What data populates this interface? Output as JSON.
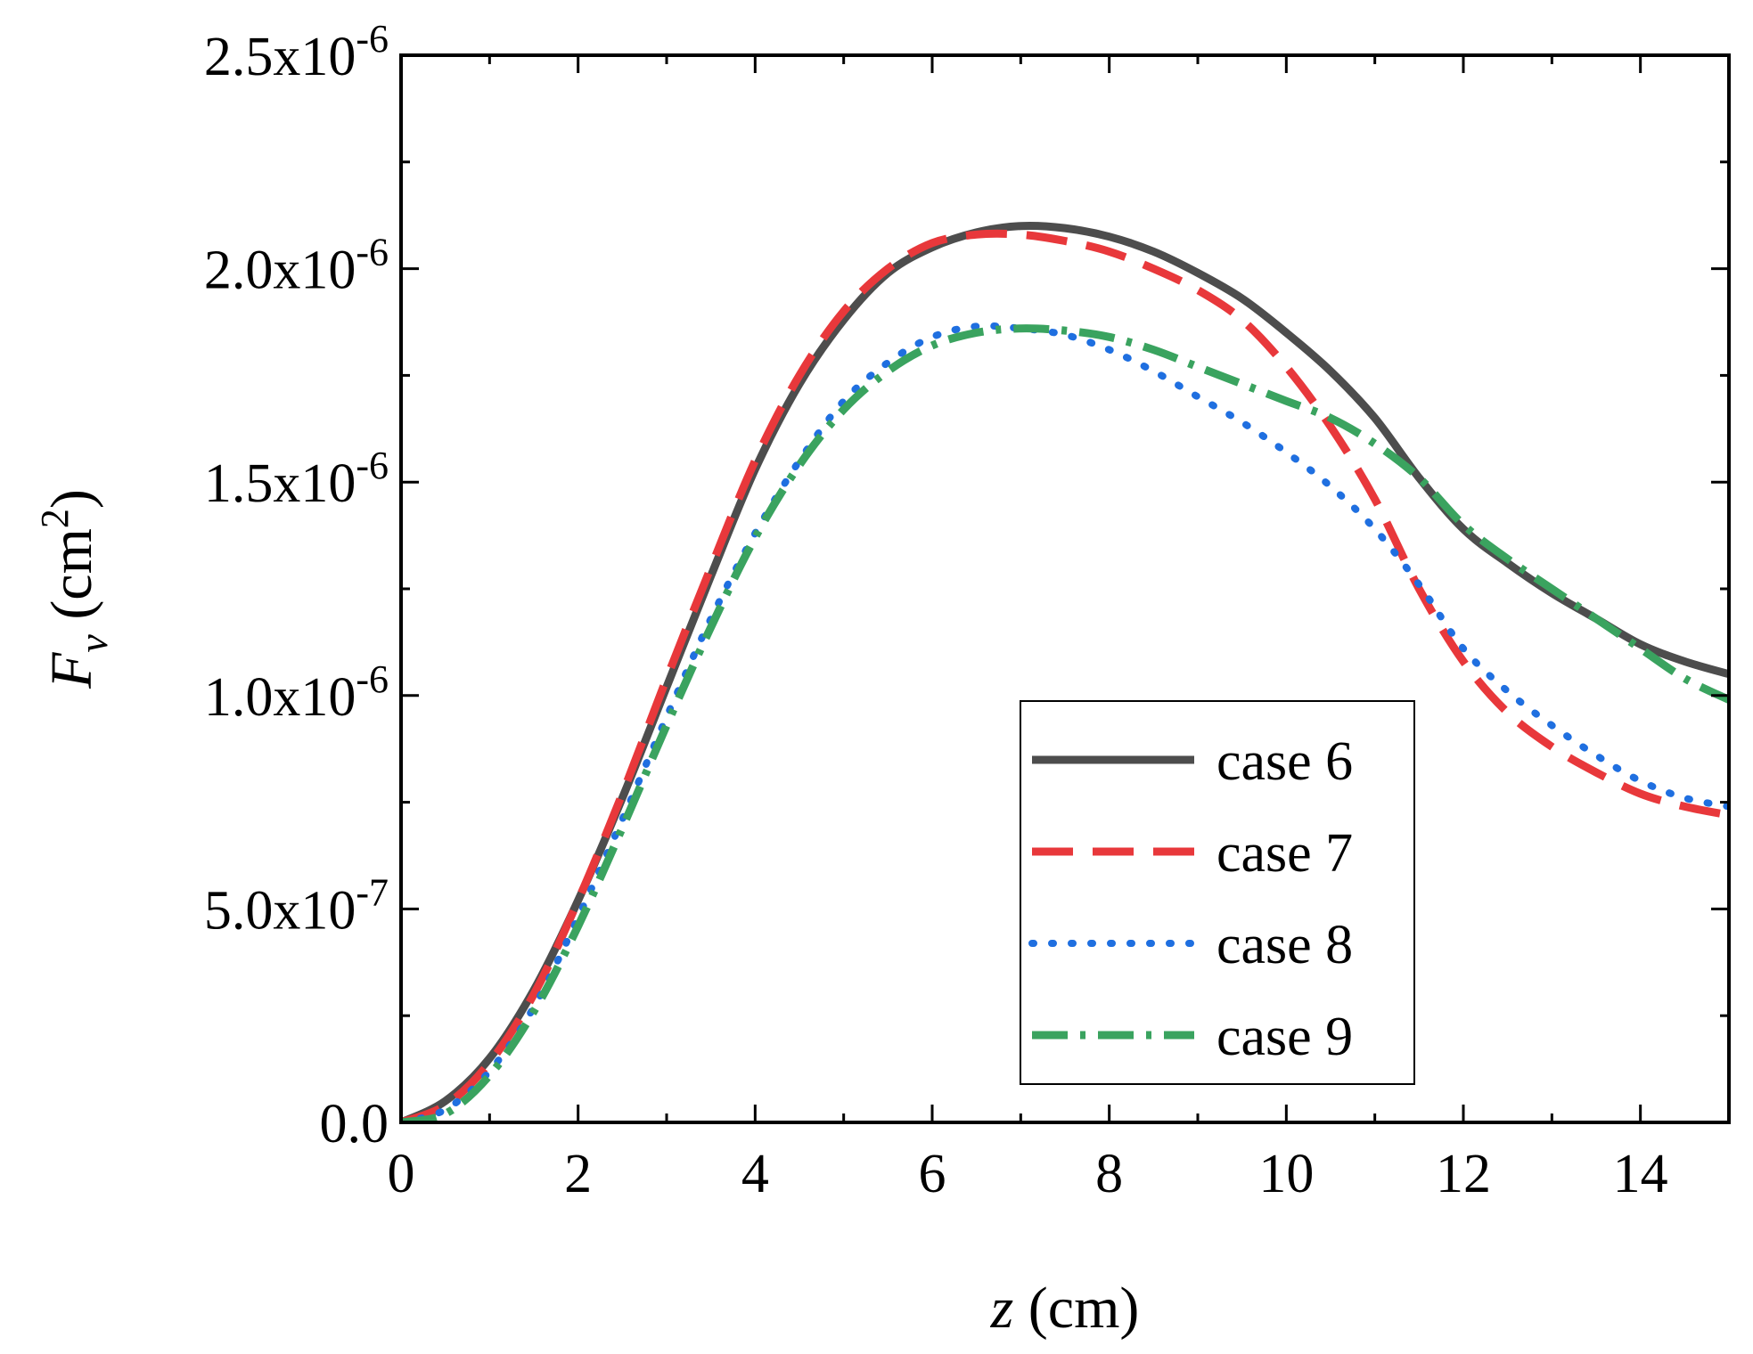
{
  "chart_data": {
    "type": "line",
    "title": "",
    "xlabel_var": "z",
    "xlabel_unit": " (cm)",
    "ylabel_var": "F",
    "ylabel_sub": "v",
    "ylabel_unit_open": " (cm",
    "ylabel_unit_sup": "2",
    "ylabel_unit_close": ")",
    "xlim": [
      0,
      15
    ],
    "ylim": [
      0,
      2.5e-06
    ],
    "x_ticks": [
      {
        "value": 0,
        "label": "0"
      },
      {
        "value": 2,
        "label": "2"
      },
      {
        "value": 4,
        "label": "4"
      },
      {
        "value": 6,
        "label": "6"
      },
      {
        "value": 8,
        "label": "8"
      },
      {
        "value": 10,
        "label": "10"
      },
      {
        "value": 12,
        "label": "12"
      },
      {
        "value": 14,
        "label": "14"
      }
    ],
    "y_ticks": [
      {
        "value": 0,
        "mant": "0.0",
        "exp": ""
      },
      {
        "value": 5e-07,
        "mant": "5.0x10",
        "exp": "-7"
      },
      {
        "value": 1e-06,
        "mant": "1.0x10",
        "exp": "-6"
      },
      {
        "value": 1.5e-06,
        "mant": "1.5x10",
        "exp": "-6"
      },
      {
        "value": 2e-06,
        "mant": "2.0x10",
        "exp": "-6"
      },
      {
        "value": 2.5e-06,
        "mant": "2.5x10",
        "exp": "-6"
      }
    ],
    "grid": false,
    "legend_position": "bottom-right",
    "series": [
      {
        "name": "case 6",
        "color": "#4d4d4d",
        "style": "solid",
        "x": [
          0,
          0.5,
          1,
          1.5,
          2,
          2.5,
          3,
          3.5,
          4,
          4.5,
          5,
          5.5,
          6,
          6.5,
          7,
          7.5,
          8,
          8.5,
          9,
          9.5,
          10,
          10.5,
          11,
          11.5,
          12,
          12.5,
          13,
          13.5,
          14,
          14.5,
          15
        ],
        "y": [
          0,
          5e-08,
          1.5e-07,
          3.1e-07,
          5.2e-07,
          7.6e-07,
          1.02e-06,
          1.28e-06,
          1.53e-06,
          1.73e-06,
          1.88e-06,
          1.99e-06,
          2.05e-06,
          2.085e-06,
          2.1e-06,
          2.095e-06,
          2.075e-06,
          2.04e-06,
          1.99e-06,
          1.93e-06,
          1.85e-06,
          1.76e-06,
          1.65e-06,
          1.51e-06,
          1.39e-06,
          1.31e-06,
          1.24e-06,
          1.18e-06,
          1.12e-06,
          1.08e-06,
          1.05e-06
        ]
      },
      {
        "name": "case 7",
        "color": "#e8383b",
        "style": "dash",
        "x": [
          0,
          0.5,
          1,
          1.5,
          2,
          2.5,
          3,
          3.5,
          4,
          4.5,
          5,
          5.5,
          6,
          6.5,
          7,
          7.5,
          8,
          8.5,
          9,
          9.5,
          10,
          10.5,
          11,
          11.5,
          12,
          12.5,
          13,
          13.5,
          14,
          14.5,
          15
        ],
        "y": [
          0,
          4e-08,
          1.4e-07,
          3e-07,
          5.2e-07,
          7.7e-07,
          1.04e-06,
          1.3e-06,
          1.55e-06,
          1.75e-06,
          1.9e-06,
          2e-06,
          2.06e-06,
          2.08e-06,
          2.08e-06,
          2.065e-06,
          2.04e-06,
          2e-06,
          1.95e-06,
          1.88e-06,
          1.77e-06,
          1.63e-06,
          1.46e-06,
          1.25e-06,
          1.08e-06,
          9.6e-07,
          8.8e-07,
          8.2e-07,
          7.7e-07,
          7.4e-07,
          7.2e-07
        ]
      },
      {
        "name": "case 8",
        "color": "#1f6fe0",
        "style": "dot",
        "x": [
          0,
          0.5,
          1,
          1.5,
          2,
          2.5,
          3,
          3.5,
          4,
          4.5,
          5,
          5.5,
          6,
          6.5,
          7,
          7.5,
          8,
          8.5,
          9,
          9.5,
          10,
          10.5,
          11,
          11.5,
          12,
          12.5,
          13,
          13.5,
          14,
          14.5,
          15
        ],
        "y": [
          0,
          3e-08,
          1.2e-07,
          2.7e-07,
          4.8e-07,
          7.1e-07,
          9.5e-07,
          1.18e-06,
          1.38e-06,
          1.55e-06,
          1.69e-06,
          1.78e-06,
          1.84e-06,
          1.865e-06,
          1.86e-06,
          1.845e-06,
          1.81e-06,
          1.76e-06,
          1.7e-06,
          1.64e-06,
          1.57e-06,
          1.49e-06,
          1.39e-06,
          1.26e-06,
          1.11e-06,
          1.01e-06,
          9.3e-07,
          8.6e-07,
          8e-07,
          7.6e-07,
          7.4e-07
        ]
      },
      {
        "name": "case 9",
        "color": "#3aa35f",
        "style": "dashdot",
        "x": [
          0,
          0.5,
          1,
          1.5,
          2,
          2.5,
          3,
          3.5,
          4,
          4.5,
          5,
          5.5,
          6,
          6.5,
          7,
          7.5,
          8,
          8.5,
          9,
          9.5,
          10,
          10.5,
          11,
          11.5,
          12,
          12.5,
          13,
          13.5,
          14,
          14.5,
          15
        ],
        "y": [
          0,
          2e-08,
          1.1e-07,
          2.6e-07,
          4.6e-07,
          6.9e-07,
          9.3e-07,
          1.16e-06,
          1.37e-06,
          1.54e-06,
          1.67e-06,
          1.76e-06,
          1.82e-06,
          1.85e-06,
          1.86e-06,
          1.855e-06,
          1.84e-06,
          1.81e-06,
          1.77e-06,
          1.73e-06,
          1.69e-06,
          1.65e-06,
          1.59e-06,
          1.51e-06,
          1.4e-06,
          1.32e-06,
          1.25e-06,
          1.18e-06,
          1.11e-06,
          1.04e-06,
          9.9e-07
        ]
      }
    ]
  }
}
